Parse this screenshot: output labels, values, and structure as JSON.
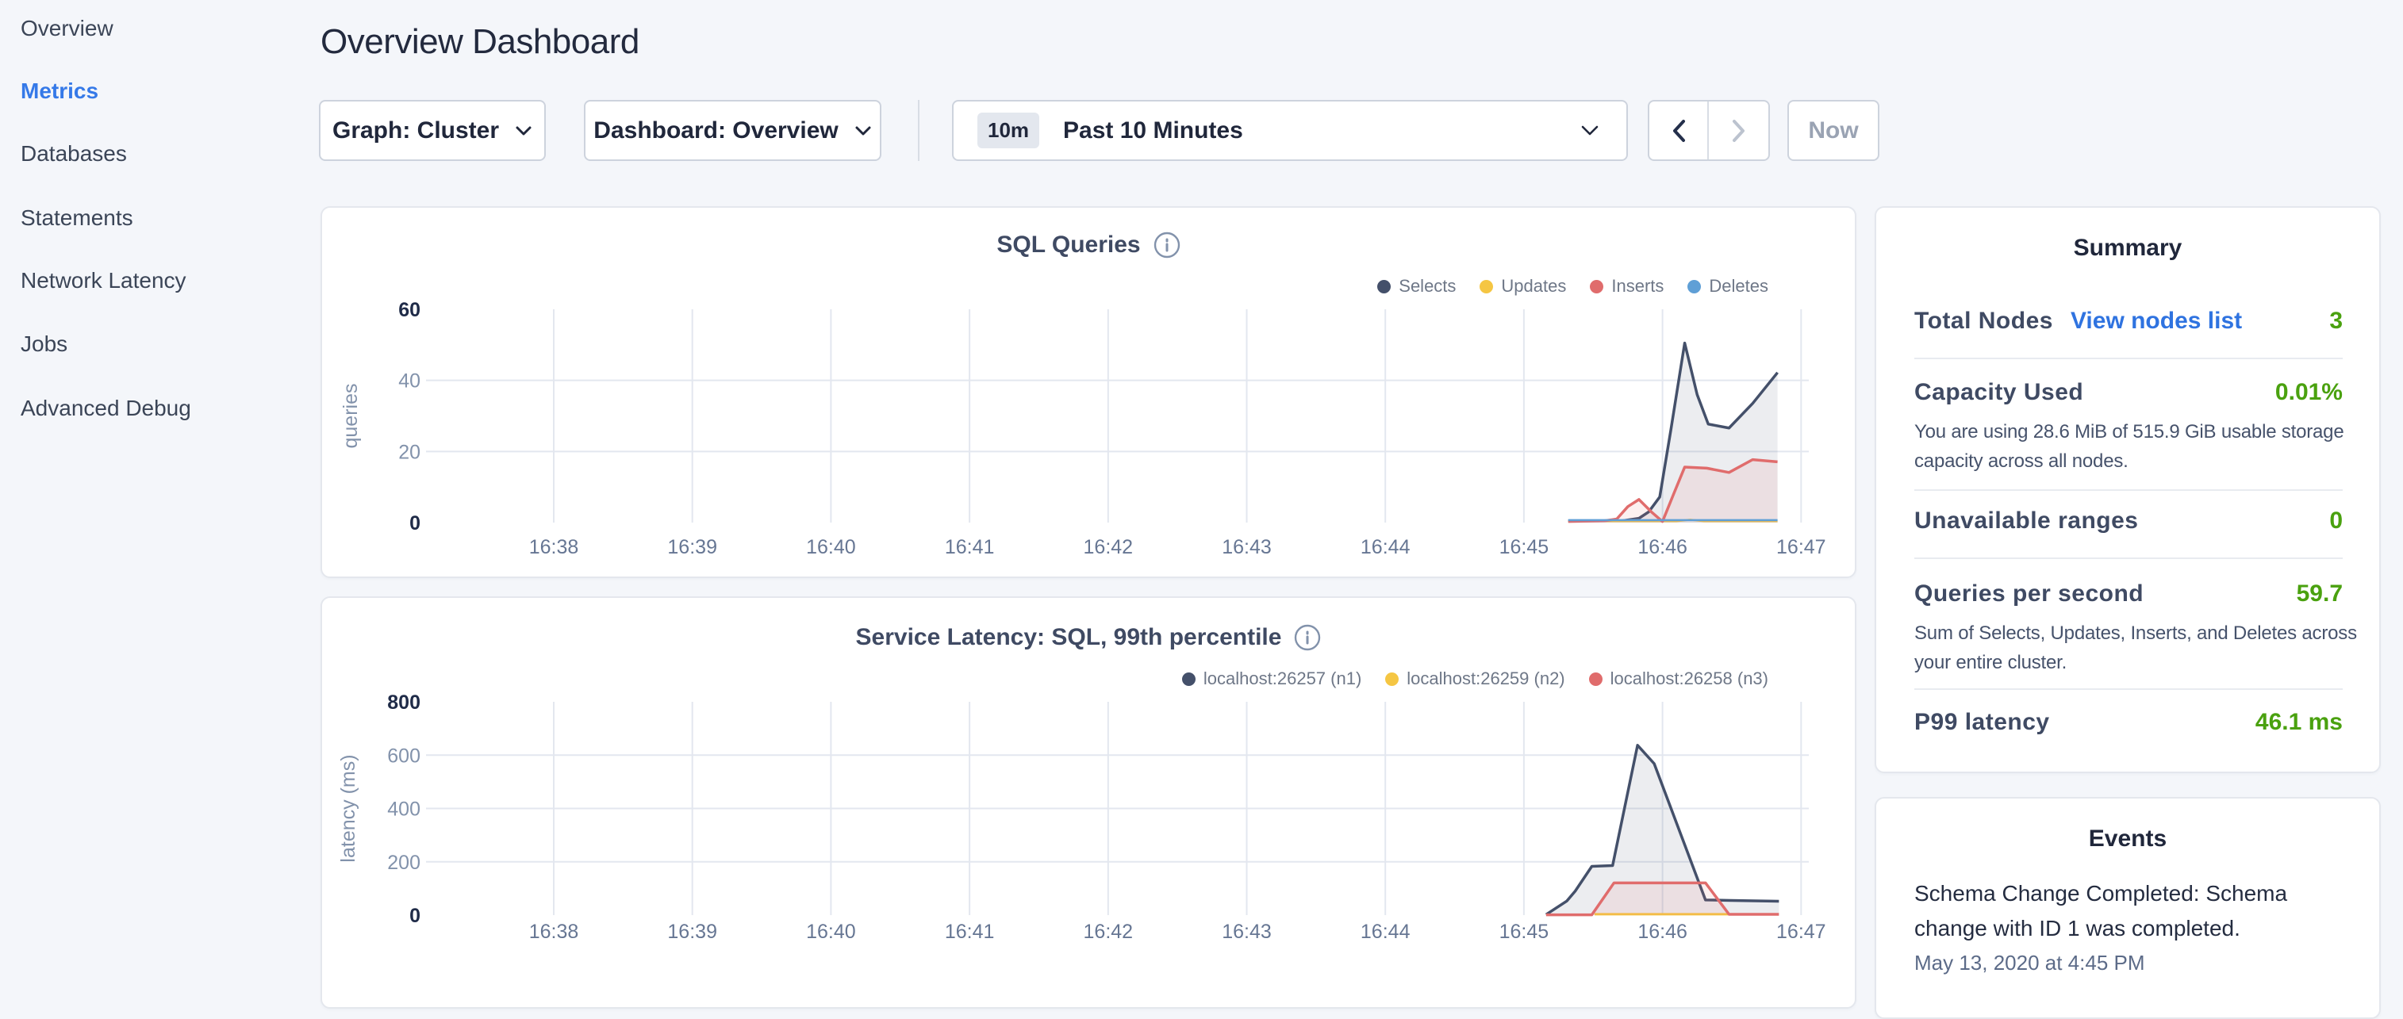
{
  "sidebar": {
    "items": [
      {
        "label": "Overview",
        "active": false
      },
      {
        "label": "Metrics",
        "active": true
      },
      {
        "label": "Databases",
        "active": false
      },
      {
        "label": "Statements",
        "active": false
      },
      {
        "label": "Network Latency",
        "active": false
      },
      {
        "label": "Jobs",
        "active": false
      },
      {
        "label": "Advanced Debug",
        "active": false
      }
    ]
  },
  "page": {
    "title": "Overview Dashboard"
  },
  "controls": {
    "graph_dropdown": "Graph: Cluster",
    "dashboard_dropdown": "Dashboard: Overview",
    "time_badge": "10m",
    "time_label": "Past 10 Minutes",
    "now_label": "Now"
  },
  "chart_data": [
    {
      "type": "area",
      "title": "SQL Queries",
      "ylabel": "queries",
      "ylim": [
        0,
        60
      ],
      "yticks": [
        0,
        20,
        40,
        60
      ],
      "xticks": [
        "16:38",
        "16:39",
        "16:40",
        "16:41",
        "16:42",
        "16:43",
        "16:44",
        "16:45",
        "16:46",
        "16:47"
      ],
      "legend_position": "top-right",
      "series": [
        {
          "name": "Selects",
          "color": "#44506a",
          "fill": "rgba(68,80,106,0.10)",
          "points": [
            [
              7.32,
              0.5
            ],
            [
              7.71,
              0.5
            ],
            [
              7.83,
              1.2
            ],
            [
              7.9,
              3
            ],
            [
              7.98,
              7.2
            ],
            [
              8.06,
              26
            ],
            [
              8.16,
              50.5
            ],
            [
              8.25,
              36
            ],
            [
              8.33,
              27.7
            ],
            [
              8.48,
              26.6
            ],
            [
              8.65,
              33.5
            ],
            [
              8.83,
              42.2
            ]
          ]
        },
        {
          "name": "Updates",
          "color": "#f5c643",
          "fill": "rgba(245,198,67,0.08)",
          "width": 2.5,
          "points": [
            [
              7.32,
              0.4
            ],
            [
              8.1,
              0.4
            ],
            [
              8.2,
              0.8
            ],
            [
              8.3,
              0.4
            ],
            [
              8.83,
              0.4
            ]
          ]
        },
        {
          "name": "Inserts",
          "color": "#e06c6c",
          "fill": "rgba(224,108,108,0.10)",
          "points": [
            [
              7.32,
              0.3
            ],
            [
              7.58,
              0.5
            ],
            [
              7.67,
              1
            ],
            [
              7.75,
              4.5
            ],
            [
              7.83,
              6.5
            ],
            [
              7.92,
              3
            ],
            [
              8.0,
              0.3
            ],
            [
              8.08,
              8
            ],
            [
              8.16,
              15.6
            ],
            [
              8.32,
              15.3
            ],
            [
              8.48,
              14.1
            ],
            [
              8.65,
              17.7
            ],
            [
              8.83,
              17.1
            ]
          ]
        },
        {
          "name": "Deletes",
          "color": "#5f9fd6",
          "fill": "rgba(95,159,214,0.08)",
          "width": 2.5,
          "points": [
            [
              7.32,
              0.7
            ],
            [
              8.83,
              0.7
            ]
          ]
        }
      ]
    },
    {
      "type": "area",
      "title": "Service Latency: SQL, 99th percentile",
      "ylabel": "latency (ms)",
      "ylim": [
        0,
        800
      ],
      "yticks": [
        0,
        200,
        400,
        600,
        800
      ],
      "xticks": [
        "16:38",
        "16:39",
        "16:40",
        "16:41",
        "16:42",
        "16:43",
        "16:44",
        "16:45",
        "16:46",
        "16:47"
      ],
      "legend_position": "top-right",
      "series": [
        {
          "name": "localhost:26257 (n1)",
          "color": "#44506a",
          "fill": "rgba(68,80,106,0.10)",
          "points": [
            [
              7.16,
              2
            ],
            [
              7.31,
              53
            ],
            [
              7.37,
              90
            ],
            [
              7.49,
              183
            ],
            [
              7.64,
              186
            ],
            [
              7.82,
              637
            ],
            [
              7.94,
              568
            ],
            [
              8.31,
              57
            ],
            [
              8.49,
              55
            ],
            [
              8.84,
              52
            ]
          ]
        },
        {
          "name": "localhost:26259 (n2)",
          "color": "#f5c643",
          "fill": "rgba(245,198,67,0.08)",
          "width": 3,
          "points": [
            [
              7.51,
              3.5
            ],
            [
              8.48,
              3.5
            ]
          ]
        },
        {
          "name": "localhost:26258 (n3)",
          "color": "#e06c6c",
          "fill": "rgba(224,108,108,0.10)",
          "points": [
            [
              7.16,
              1
            ],
            [
              7.49,
              1
            ],
            [
              7.65,
              121
            ],
            [
              8.31,
              121
            ],
            [
              8.48,
              3
            ],
            [
              8.84,
              3
            ]
          ]
        }
      ]
    }
  ],
  "summary": {
    "title": "Summary",
    "rows": [
      {
        "label": "Total Nodes",
        "link": "View nodes list",
        "value": "3",
        "desc_lines": []
      },
      {
        "label": "Capacity Used",
        "link": "",
        "value": "0.01%",
        "desc_lines": [
          "You are using 28.6 MiB of 515.9 GiB usable storage",
          "capacity across all nodes."
        ]
      },
      {
        "label": "Unavailable ranges",
        "link": "",
        "value": "0",
        "desc_lines": []
      },
      {
        "label": "Queries per second",
        "link": "",
        "value": "59.7",
        "desc_lines": [
          "Sum of Selects, Updates, Inserts, and Deletes across",
          "your entire cluster."
        ]
      },
      {
        "label": "P99 latency",
        "link": "",
        "value": "46.1 ms",
        "desc_lines": []
      }
    ]
  },
  "events": {
    "title": "Events",
    "items": [
      {
        "text": "Schema Change Completed: Schema change with ID 1 was completed.",
        "time": "May 13, 2020 at 4:45 PM"
      }
    ]
  }
}
